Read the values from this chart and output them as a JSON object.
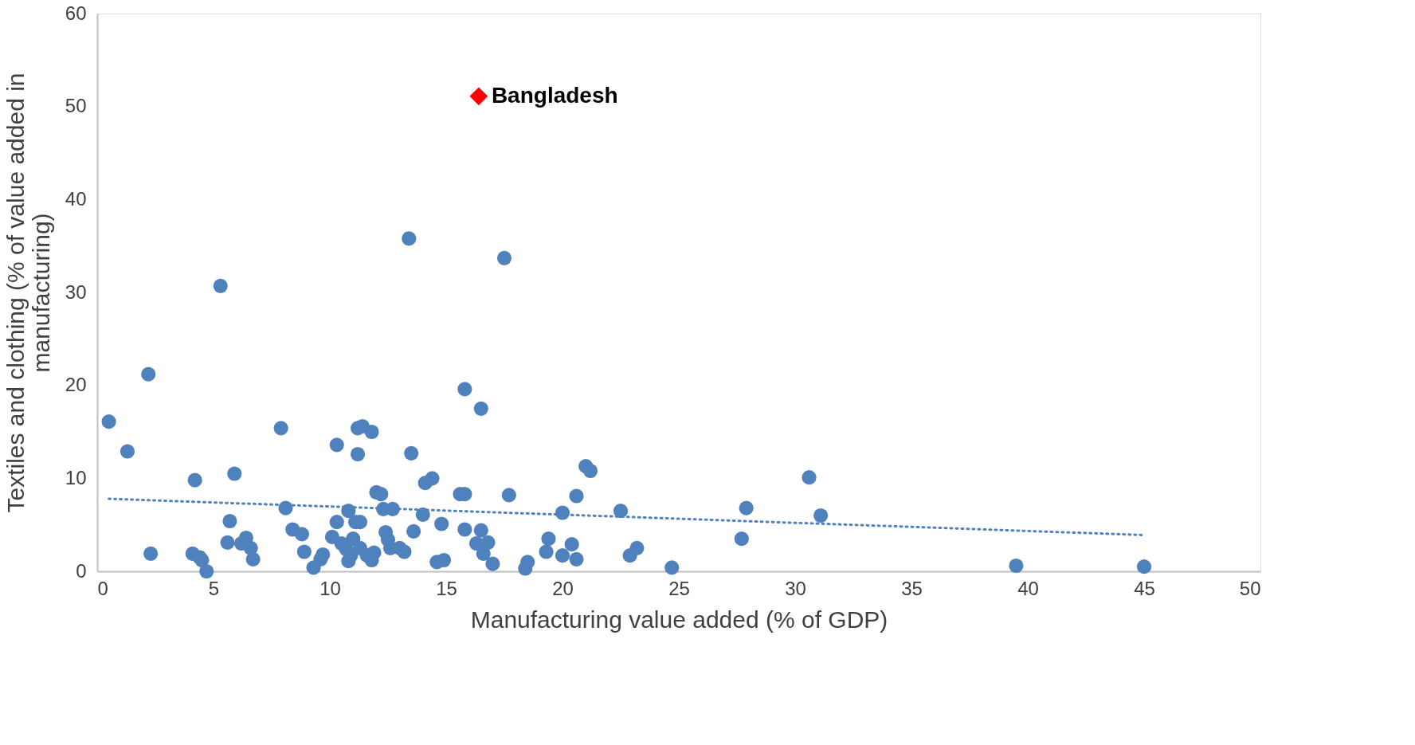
{
  "chart_data": {
    "type": "scatter",
    "xlabel": "Manufacturing value added (% of GDP)",
    "ylabel": "Textiles and clothing (% of value added in manufacturing)",
    "xlim": [
      0,
      50
    ],
    "xticks": [
      0,
      5,
      10,
      15,
      20,
      25,
      30,
      35,
      40,
      45,
      50
    ],
    "ylim": [
      0,
      60
    ],
    "yticks": [
      0,
      10,
      20,
      30,
      40,
      50,
      60
    ],
    "grid": false,
    "series": [
      {
        "marker": "circle",
        "color": "#4f81bd",
        "x": [
          0.5,
          1.3,
          2.2,
          2.3,
          4.2,
          4.1,
          4.4,
          4.5,
          4.7,
          5.3,
          5.7,
          5.9,
          5.6,
          6.2,
          6.4,
          6.6,
          6.7,
          7.9,
          8.1,
          8.4,
          8.8,
          8.9,
          9.3,
          9.6,
          9.7,
          10.1,
          10.3,
          10.3,
          10.5,
          10.7,
          10.8,
          10.8,
          10.9,
          11.0,
          11.1,
          11.2,
          11.2,
          11.4,
          11.3,
          11.3,
          11.6,
          11.8,
          11.8,
          11.9,
          12.0,
          12.2,
          12.3,
          12.4,
          12.5,
          12.6,
          12.7,
          13.0,
          13.2,
          13.4,
          13.5,
          13.6,
          14.0,
          14.1,
          14.4,
          14.6,
          14.8,
          14.9,
          15.6,
          15.8,
          15.8,
          15.8,
          16.3,
          16.5,
          16.5,
          16.6,
          16.8,
          17.0,
          17.5,
          17.7,
          18.4,
          18.5,
          19.3,
          19.4,
          20.0,
          20.0,
          20.4,
          20.6,
          20.6,
          21.0,
          21.2,
          22.5,
          22.9,
          23.2,
          24.7,
          27.7,
          27.9,
          30.6,
          31.1,
          39.5,
          45.0
        ],
        "values": [
          16.1,
          12.9,
          21.2,
          1.9,
          9.8,
          1.9,
          1.5,
          1.2,
          0.0,
          30.7,
          5.4,
          10.5,
          3.1,
          3.0,
          3.6,
          2.5,
          1.3,
          15.4,
          6.8,
          4.5,
          4.0,
          2.1,
          0.4,
          1.3,
          1.8,
          3.7,
          13.6,
          5.3,
          3.0,
          2.4,
          6.5,
          1.1,
          1.7,
          3.5,
          5.3,
          12.6,
          15.4,
          15.6,
          2.5,
          5.3,
          1.7,
          15.0,
          1.2,
          2.0,
          8.5,
          8.3,
          6.7,
          4.2,
          3.4,
          2.5,
          6.7,
          2.5,
          2.1,
          35.8,
          12.7,
          4.3,
          6.1,
          9.5,
          10.0,
          1.0,
          5.1,
          1.2,
          8.3,
          8.3,
          19.6,
          4.5,
          3.0,
          4.4,
          17.5,
          1.9,
          3.1,
          0.8,
          33.7,
          8.2,
          0.3,
          1.0,
          2.1,
          3.5,
          6.3,
          1.7,
          2.9,
          8.1,
          1.3,
          11.3,
          10.8,
          6.5,
          1.7,
          2.5,
          0.4,
          3.5,
          6.8,
          10.1,
          6.0,
          0.6,
          0.5
        ]
      },
      {
        "type": "line",
        "line_style": "dotted",
        "color": "#4f81bd",
        "x": [
          0.5,
          45.0
        ],
        "values": [
          7.8,
          3.9
        ]
      },
      {
        "marker": "diamond",
        "name": "Bangladesh",
        "color": "#ff0000",
        "x": [
          16.4
        ],
        "values": [
          51.1
        ]
      }
    ]
  }
}
